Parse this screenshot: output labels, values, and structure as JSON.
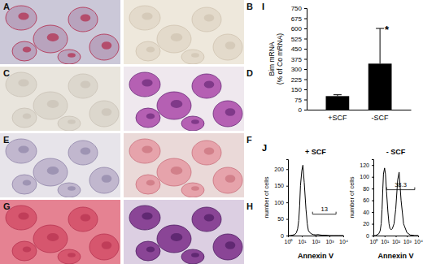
{
  "panel_labels": [
    "A",
    "B",
    "C",
    "D",
    "E",
    "F",
    "G",
    "H",
    "I",
    "J"
  ],
  "chart_data": [
    {
      "type": "bar",
      "categories": [
        "+SCF",
        "-SCF"
      ],
      "values": [
        100,
        340
      ],
      "errors": [
        10,
        260
      ],
      "color": "#000000",
      "ylabel": [
        "Bim mRNA",
        "(% of Co mRNA)"
      ],
      "ylim": [
        0,
        750
      ],
      "yticks": [
        0,
        75,
        150,
        225,
        300,
        375,
        450,
        525,
        600,
        675,
        750
      ],
      "annotations": [
        {
          "text": "*",
          "x": 1,
          "y": 600
        }
      ]
    },
    {
      "type": "line",
      "title": "+ SCF",
      "xlabel": "Annexin V",
      "ylabel": "number of cells",
      "log": "x",
      "color": "#000000",
      "x": [
        1,
        1.5,
        2,
        3,
        4,
        5,
        6,
        7,
        8,
        10,
        12,
        15,
        20,
        25,
        30,
        40,
        50,
        70,
        100,
        150,
        200,
        300,
        500,
        1000,
        2000,
        5000,
        10000
      ],
      "values": [
        0,
        0,
        1,
        3,
        8,
        20,
        45,
        90,
        150,
        195,
        212,
        160,
        80,
        35,
        15,
        8,
        5,
        3,
        2,
        3,
        2,
        1,
        1,
        0,
        0,
        0,
        0
      ],
      "xlim": [
        1,
        10000
      ],
      "xticks": [
        {
          "value": 1,
          "label": "10⁰"
        },
        {
          "value": 10,
          "label": "10¹"
        },
        {
          "value": 100,
          "label": "10²"
        },
        {
          "value": 1000,
          "label": "10³"
        },
        {
          "value": 10000,
          "label": "10⁴"
        }
      ],
      "ylim": [
        0,
        230
      ],
      "yticks": [
        0,
        50,
        100,
        150,
        200
      ],
      "gate": {
        "x": [
          60,
          3000
        ],
        "value": 13
      }
    },
    {
      "type": "line",
      "title": "- SCF",
      "xlabel": "Annexin V",
      "ylabel": "number of cells",
      "log": "x",
      "color": "#000000",
      "x": [
        1,
        1.5,
        2,
        3,
        4,
        5,
        6,
        7,
        8,
        10,
        12,
        15,
        20,
        25,
        30,
        40,
        50,
        70,
        100,
        150,
        200,
        300,
        500,
        1000,
        2000,
        5000,
        10000
      ],
      "values": [
        0,
        0,
        1,
        3,
        8,
        20,
        45,
        80,
        105,
        115,
        105,
        75,
        40,
        20,
        12,
        10,
        12,
        20,
        45,
        95,
        108,
        60,
        20,
        5,
        1,
        0,
        0
      ],
      "xlim": [
        1,
        10000
      ],
      "xticks": [
        {
          "value": 1,
          "label": "10⁰"
        },
        {
          "value": 10,
          "label": "10¹"
        },
        {
          "value": 100,
          "label": "10²"
        },
        {
          "value": 1000,
          "label": "10³"
        },
        {
          "value": 10000,
          "label": "10⁴"
        }
      ],
      "ylim": [
        0,
        130
      ],
      "yticks": [
        0,
        20,
        40,
        60,
        80,
        100,
        120
      ],
      "gate": {
        "x": [
          15,
          5000
        ],
        "value": 38.3
      }
    }
  ]
}
